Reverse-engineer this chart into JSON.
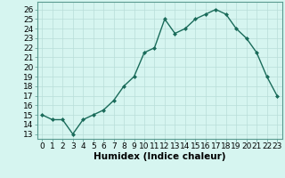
{
  "x": [
    0,
    1,
    2,
    3,
    4,
    5,
    6,
    7,
    8,
    9,
    10,
    11,
    12,
    13,
    14,
    15,
    16,
    17,
    18,
    19,
    20,
    21,
    22,
    23
  ],
  "y": [
    15,
    14.5,
    14.5,
    13,
    14.5,
    15,
    15.5,
    16.5,
    18,
    19,
    21.5,
    22,
    25,
    23.5,
    24,
    25,
    25.5,
    26,
    25.5,
    24,
    23,
    21.5,
    19,
    17
  ],
  "line_color": "#1a6b5a",
  "marker": "D",
  "markersize": 2.0,
  "linewidth": 1.0,
  "bg_color": "#d6f5f0",
  "grid_color": "#b8ddd8",
  "xlabel": "Humidex (Indice chaleur)",
  "xlim": [
    -0.5,
    23.5
  ],
  "ylim": [
    12.5,
    26.8
  ],
  "yticks": [
    13,
    14,
    15,
    16,
    17,
    18,
    19,
    20,
    21,
    22,
    23,
    24,
    25,
    26
  ],
  "xtick_labels": [
    "0",
    "1",
    "2",
    "3",
    "4",
    "5",
    "6",
    "7",
    "8",
    "9",
    "10",
    "11",
    "12",
    "13",
    "14",
    "15",
    "16",
    "17",
    "18",
    "19",
    "20",
    "21",
    "22",
    "23"
  ],
  "xlabel_fontsize": 7.5,
  "ytick_fontsize": 6.5,
  "xtick_fontsize": 6.5
}
